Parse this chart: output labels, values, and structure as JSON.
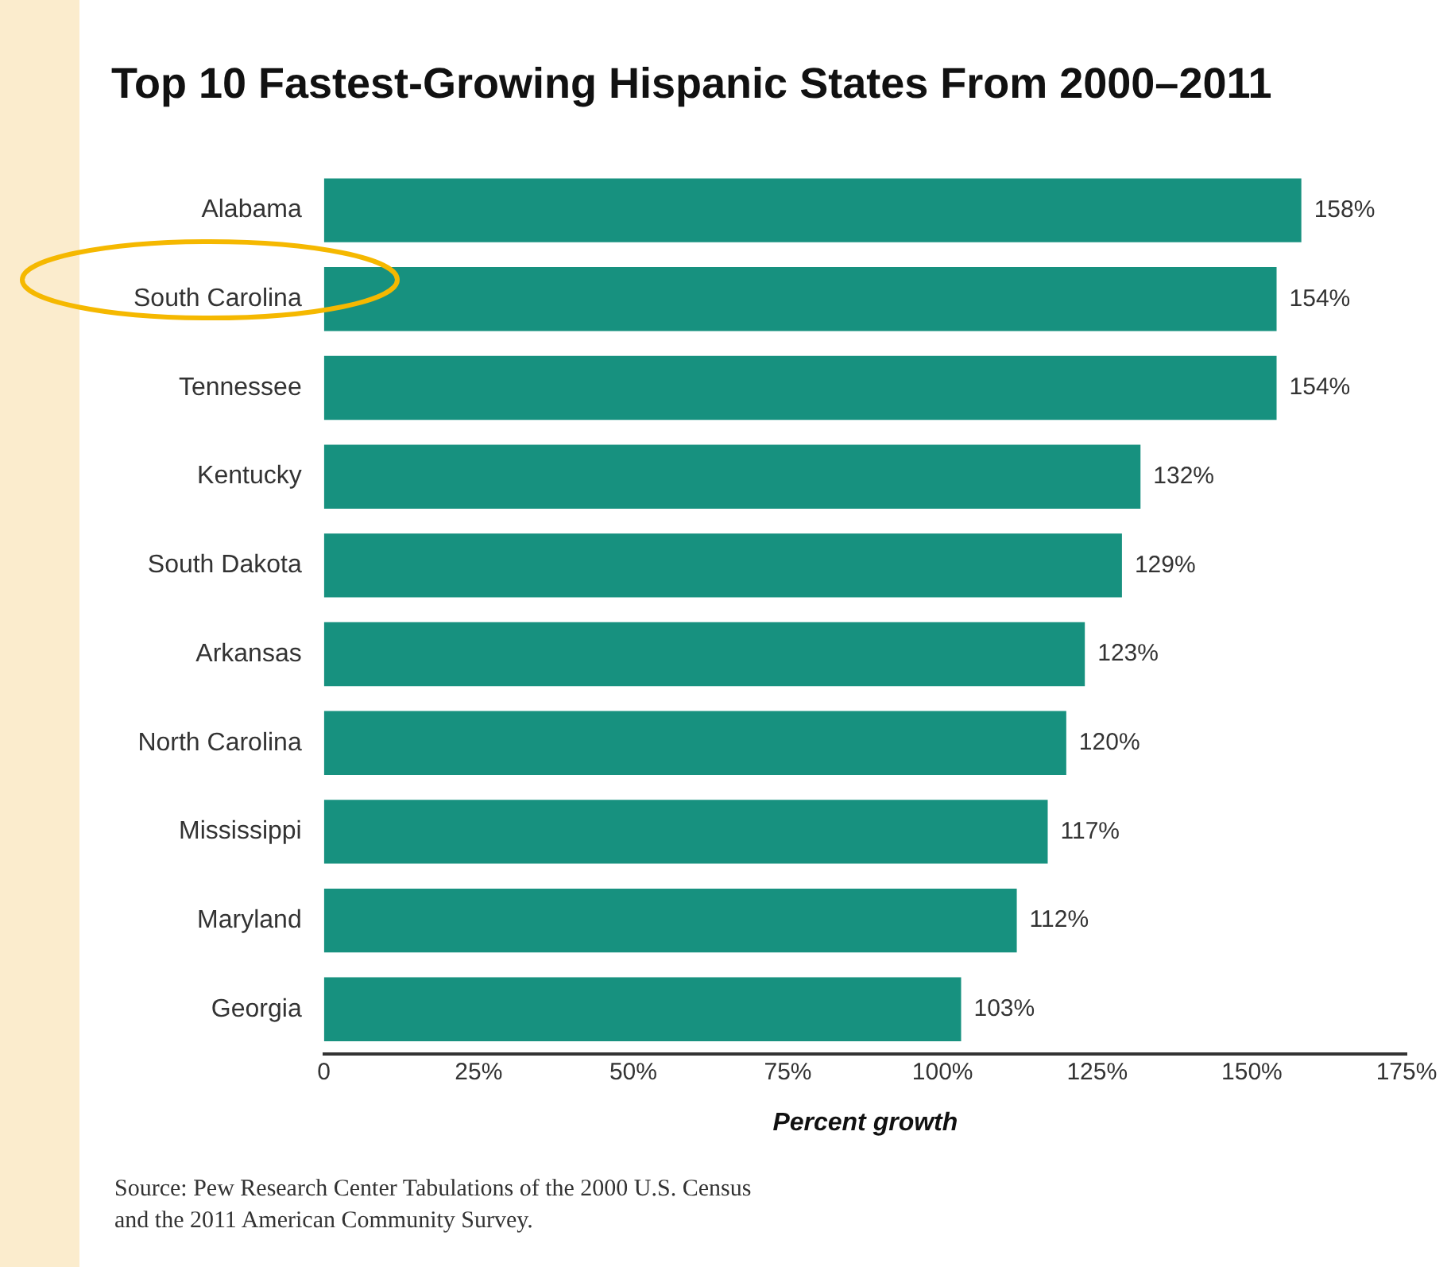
{
  "chart_data": {
    "type": "bar",
    "orientation": "horizontal",
    "title": "Top 10 Fastest-Growing Hispanic States From 2000–2011",
    "categories": [
      "Alabama",
      "South Carolina",
      "Tennessee",
      "Kentucky",
      "South Dakota",
      "Arkansas",
      "North Carolina",
      "Mississippi",
      "Maryland",
      "Georgia"
    ],
    "values": [
      158,
      154,
      154,
      132,
      129,
      123,
      120,
      117,
      112,
      103
    ],
    "value_labels": [
      "158%",
      "154%",
      "154%",
      "132%",
      "129%",
      "123%",
      "120%",
      "117%",
      "112%",
      "103%"
    ],
    "color": "#17917f",
    "xlim": [
      0,
      175
    ],
    "xticks": [
      0,
      {
        "value": 25,
        "label": "25%"
      },
      {
        "value": 50,
        "label": "50%"
      },
      {
        "value": 75,
        "label": "75%"
      },
      {
        "value": 100,
        "label": "100%"
      },
      {
        "value": 125,
        "label": "125%"
      },
      {
        "value": 150,
        "label": "150%"
      },
      {
        "value": 175,
        "label": "175%"
      }
    ],
    "xlabel": "Percent growth",
    "grid": false,
    "legend": false,
    "annotations": [
      "Source: Pew Research Center Tabulations of the 2000 U.S. Census and the 2011 American Community Survey."
    ]
  }
}
